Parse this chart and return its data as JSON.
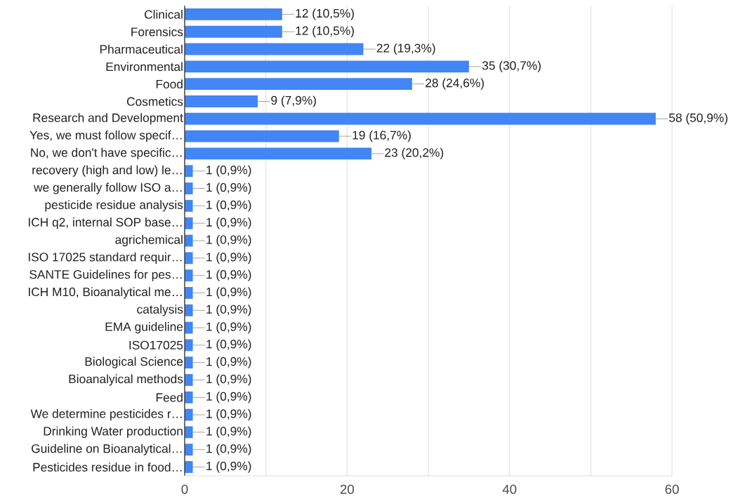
{
  "chart_data": {
    "type": "bar",
    "orientation": "horizontal",
    "categories": [
      "Clinical",
      "Forensics",
      "Pharmaceutical",
      "Environmental",
      "Food",
      "Cosmetics",
      "Research and Development",
      "Yes, we must follow specif…",
      "No, we don't have specific…",
      "recovery (high and low) le…",
      "we generally follow ISO a…",
      "pesticide residue analysis",
      "ICH q2, internal SOP base…",
      "agrichemical",
      "ISO 17025 standard requir…",
      "SANTE Guidelines for pes…",
      "ICH M10, Bioanalytical me…",
      "catalysis",
      "EMA guideline",
      "ISO17025",
      "Biological Science",
      "Bioanalyical methods",
      "Feed",
      "We determine pesticides r…",
      "Drinking Water production",
      "Guideline on Bioanalytical…",
      "Pesticides residue in food…"
    ],
    "values": [
      12,
      12,
      22,
      35,
      28,
      9,
      58,
      19,
      23,
      1,
      1,
      1,
      1,
      1,
      1,
      1,
      1,
      1,
      1,
      1,
      1,
      1,
      1,
      1,
      1,
      1,
      1
    ],
    "value_labels": [
      "12 (10,5%)",
      "12 (10,5%)",
      "22 (19,3%)",
      "35 (30,7%)",
      "28 (24,6%)",
      "9 (7,9%)",
      "58 (50,9%)",
      "19 (16,7%)",
      "23 (20,2%)",
      "1 (0,9%)",
      "1 (0,9%)",
      "1 (0,9%)",
      "1 (0,9%)",
      "1 (0,9%)",
      "1 (0,9%)",
      "1 (0,9%)",
      "1 (0,9%)",
      "1 (0,9%)",
      "1 (0,9%)",
      "1 (0,9%)",
      "1 (0,9%)",
      "1 (0,9%)",
      "1 (0,9%)",
      "1 (0,9%)",
      "1 (0,9%)",
      "1 (0,9%)",
      "1 (0,9%)"
    ],
    "color": "#4285f4",
    "xlim": [
      0,
      60
    ],
    "xticks": [
      0,
      {
        "value": 10,
        "label": null
      },
      20,
      {
        "value": 30,
        "label": null
      },
      40,
      {
        "value": 50,
        "label": null
      },
      60
    ],
    "grid": "x"
  }
}
